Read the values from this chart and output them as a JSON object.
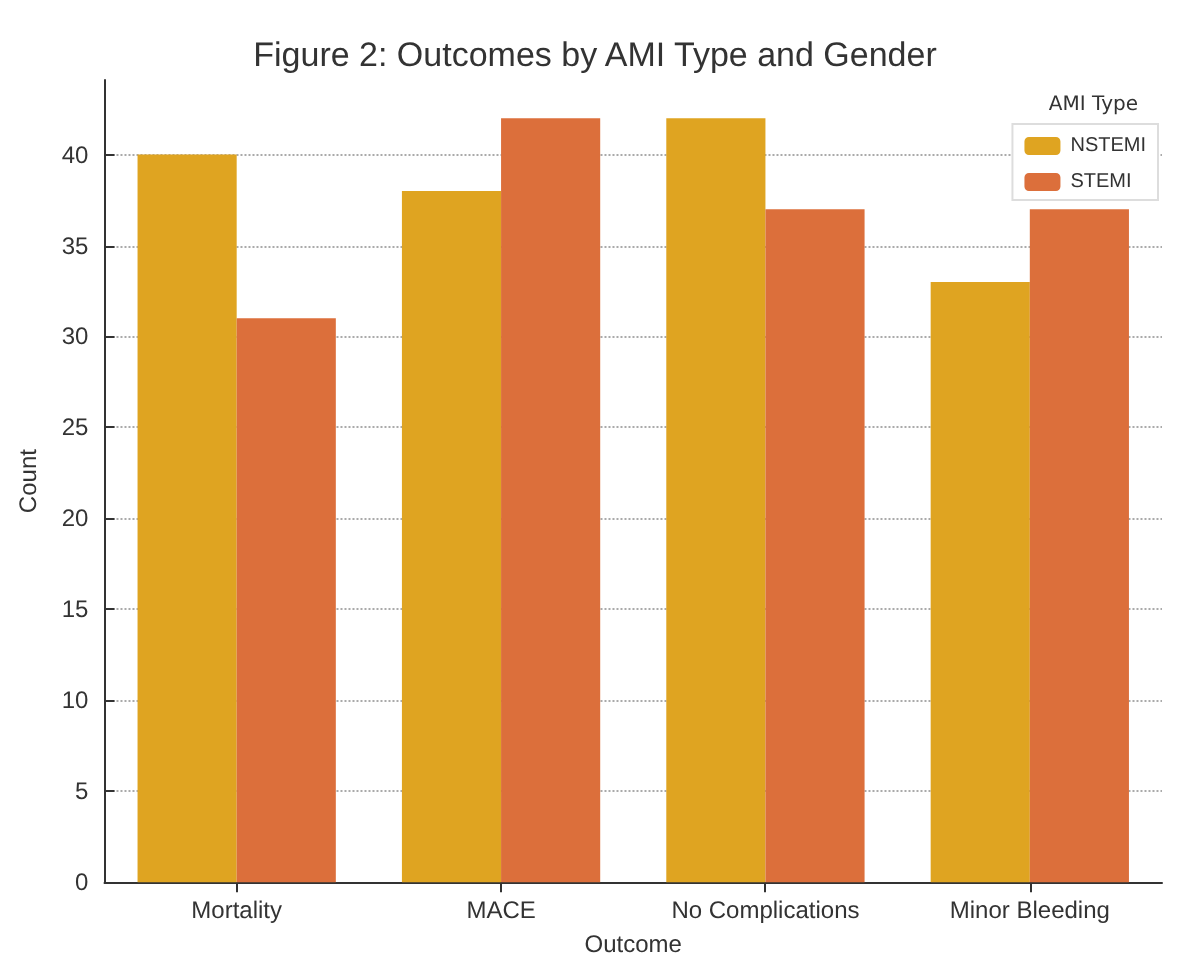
{
  "chart_data": {
    "type": "bar",
    "title": "Figure 2: Outcomes by AMI Type and Gender",
    "xlabel": "Outcome",
    "ylabel": "Count",
    "legend_title": "AMI Type",
    "categories": [
      "Mortality",
      "MACE",
      "No Complications",
      "Minor Bleeding"
    ],
    "series": [
      {
        "name": "NSTEMI",
        "color": "#dfa421",
        "values": [
          40,
          38,
          42,
          33
        ]
      },
      {
        "name": "STEMI",
        "color": "#dc6f3b",
        "values": [
          31,
          42,
          37,
          37
        ]
      }
    ],
    "ylim": [
      0,
      44.1
    ],
    "yticks": [
      0,
      5,
      10,
      15,
      20,
      25,
      30,
      35,
      40
    ],
    "grid": "y",
    "legend": "top right"
  }
}
